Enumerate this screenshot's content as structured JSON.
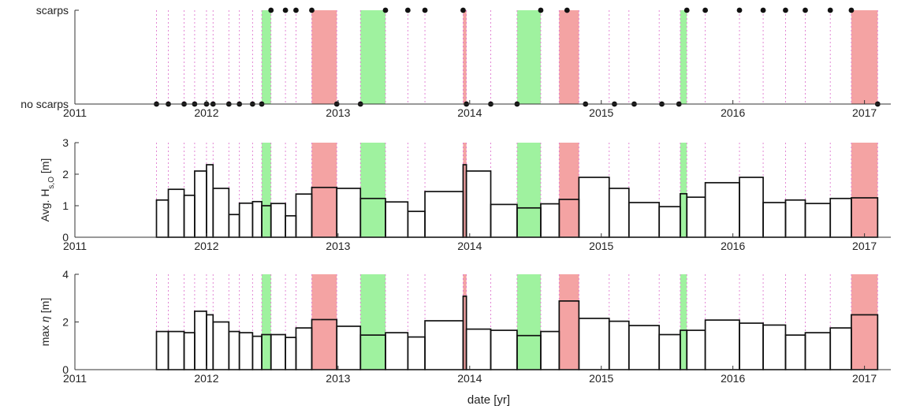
{
  "chart_data": {
    "type": "bar",
    "xlabel": "date [yr]",
    "xlim": [
      2011,
      2017.2
    ],
    "xticks": [
      "2011",
      "2012",
      "2013",
      "2014",
      "2015",
      "2016",
      "2017"
    ],
    "colors": {
      "scarp_shade": "#f4a3a3",
      "no_scarp_shade": "#9ff29f",
      "survey_line": "#e07ad0",
      "box": "#111111",
      "bg": "#ffffff"
    },
    "highlight_periods": [
      {
        "kind": "red",
        "start": 2012.8,
        "end": 2012.99
      },
      {
        "kind": "red",
        "start": 2013.95,
        "end": 2013.975
      },
      {
        "kind": "red",
        "start": 2014.68,
        "end": 2014.83
      },
      {
        "kind": "red",
        "start": 2016.9,
        "end": 2017.1
      },
      {
        "kind": "green",
        "start": 2012.42,
        "end": 2012.49
      },
      {
        "kind": "green",
        "start": 2013.17,
        "end": 2013.36
      },
      {
        "kind": "green",
        "start": 2014.36,
        "end": 2014.54
      },
      {
        "kind": "green",
        "start": 2015.6,
        "end": 2015.65
      }
    ],
    "survey_dates": [
      2011.62,
      2011.71,
      2011.83,
      2011.91,
      2012.0,
      2012.05,
      2012.17,
      2012.25,
      2012.35,
      2012.42,
      2012.49,
      2012.6,
      2012.68,
      2012.8,
      2012.99,
      2013.17,
      2013.36,
      2013.53,
      2013.66,
      2013.95,
      2013.975,
      2014.16,
      2014.36,
      2014.54,
      2014.68,
      2014.83,
      2015.06,
      2015.21,
      2015.44,
      2015.6,
      2015.65,
      2015.79,
      2016.05,
      2016.23,
      2016.4,
      2016.55,
      2016.74,
      2016.9,
      2017.1
    ],
    "panels": [
      {
        "name": "scarps",
        "type": "scatter",
        "ylim": [
          0,
          1
        ],
        "ytick_labels": [
          "no scarps",
          "scarps"
        ],
        "points": [
          {
            "x": 2011.62,
            "y": 0
          },
          {
            "x": 2011.71,
            "y": 0
          },
          {
            "x": 2011.83,
            "y": 0
          },
          {
            "x": 2011.91,
            "y": 0
          },
          {
            "x": 2012.0,
            "y": 0
          },
          {
            "x": 2012.05,
            "y": 0
          },
          {
            "x": 2012.17,
            "y": 0
          },
          {
            "x": 2012.25,
            "y": 0
          },
          {
            "x": 2012.35,
            "y": 0
          },
          {
            "x": 2012.42,
            "y": 0
          },
          {
            "x": 2012.49,
            "y": 1
          },
          {
            "x": 2012.6,
            "y": 1
          },
          {
            "x": 2012.68,
            "y": 1
          },
          {
            "x": 2012.8,
            "y": 1
          },
          {
            "x": 2012.99,
            "y": 0
          },
          {
            "x": 2013.17,
            "y": 0
          },
          {
            "x": 2013.36,
            "y": 1
          },
          {
            "x": 2013.53,
            "y": 1
          },
          {
            "x": 2013.66,
            "y": 1
          },
          {
            "x": 2013.95,
            "y": 1
          },
          {
            "x": 2013.975,
            "y": 0
          },
          {
            "x": 2014.16,
            "y": 0
          },
          {
            "x": 2014.36,
            "y": 0
          },
          {
            "x": 2014.54,
            "y": 1
          },
          {
            "x": 2014.74,
            "y": 1
          },
          {
            "x": 2014.88,
            "y": 0
          },
          {
            "x": 2015.1,
            "y": 0
          },
          {
            "x": 2015.25,
            "y": 0
          },
          {
            "x": 2015.46,
            "y": 0
          },
          {
            "x": 2015.59,
            "y": 0
          },
          {
            "x": 2015.65,
            "y": 1
          },
          {
            "x": 2015.79,
            "y": 1
          },
          {
            "x": 2016.05,
            "y": 1
          },
          {
            "x": 2016.23,
            "y": 1
          },
          {
            "x": 2016.4,
            "y": 1
          },
          {
            "x": 2016.55,
            "y": 1
          },
          {
            "x": 2016.74,
            "y": 1
          },
          {
            "x": 2016.9,
            "y": 1
          },
          {
            "x": 2017.1,
            "y": 0
          }
        ]
      },
      {
        "name": "avg_hs",
        "ylabel": "Avg. H",
        "ylabel_sub": "s,O",
        "ylabel_unit": " [m]",
        "ylim": [
          0,
          3
        ],
        "yticks": [
          0,
          1,
          2,
          3
        ],
        "bars": [
          {
            "start": 2011.62,
            "end": 2011.71,
            "value": 1.18
          },
          {
            "start": 2011.71,
            "end": 2011.83,
            "value": 1.52
          },
          {
            "start": 2011.83,
            "end": 2011.91,
            "value": 1.33
          },
          {
            "start": 2011.91,
            "end": 2012.0,
            "value": 2.1
          },
          {
            "start": 2012.0,
            "end": 2012.05,
            "value": 2.3
          },
          {
            "start": 2012.05,
            "end": 2012.17,
            "value": 1.55
          },
          {
            "start": 2012.17,
            "end": 2012.25,
            "value": 0.72
          },
          {
            "start": 2012.25,
            "end": 2012.35,
            "value": 1.08
          },
          {
            "start": 2012.35,
            "end": 2012.42,
            "value": 1.13
          },
          {
            "start": 2012.42,
            "end": 2012.49,
            "value": 1.0
          },
          {
            "start": 2012.49,
            "end": 2012.6,
            "value": 1.07
          },
          {
            "start": 2012.6,
            "end": 2012.68,
            "value": 0.68
          },
          {
            "start": 2012.68,
            "end": 2012.8,
            "value": 1.37
          },
          {
            "start": 2012.8,
            "end": 2012.99,
            "value": 1.58
          },
          {
            "start": 2012.99,
            "end": 2013.17,
            "value": 1.55
          },
          {
            "start": 2013.17,
            "end": 2013.36,
            "value": 1.23
          },
          {
            "start": 2013.36,
            "end": 2013.53,
            "value": 1.12
          },
          {
            "start": 2013.53,
            "end": 2013.66,
            "value": 0.82
          },
          {
            "start": 2013.66,
            "end": 2013.95,
            "value": 1.45
          },
          {
            "start": 2013.95,
            "end": 2013.975,
            "value": 2.3
          },
          {
            "start": 2013.975,
            "end": 2014.16,
            "value": 2.1
          },
          {
            "start": 2014.16,
            "end": 2014.36,
            "value": 1.04
          },
          {
            "start": 2014.36,
            "end": 2014.54,
            "value": 0.93
          },
          {
            "start": 2014.54,
            "end": 2014.68,
            "value": 1.06
          },
          {
            "start": 2014.68,
            "end": 2014.83,
            "value": 1.2
          },
          {
            "start": 2014.83,
            "end": 2015.06,
            "value": 1.9
          },
          {
            "start": 2015.06,
            "end": 2015.21,
            "value": 1.55
          },
          {
            "start": 2015.21,
            "end": 2015.44,
            "value": 1.1
          },
          {
            "start": 2015.44,
            "end": 2015.6,
            "value": 0.97
          },
          {
            "start": 2015.6,
            "end": 2015.65,
            "value": 1.38
          },
          {
            "start": 2015.65,
            "end": 2015.79,
            "value": 1.27
          },
          {
            "start": 2015.79,
            "end": 2016.05,
            "value": 1.73
          },
          {
            "start": 2016.05,
            "end": 2016.23,
            "value": 1.9
          },
          {
            "start": 2016.23,
            "end": 2016.4,
            "value": 1.1
          },
          {
            "start": 2016.4,
            "end": 2016.55,
            "value": 1.18
          },
          {
            "start": 2016.55,
            "end": 2016.74,
            "value": 1.07
          },
          {
            "start": 2016.74,
            "end": 2016.9,
            "value": 1.23
          },
          {
            "start": 2016.9,
            "end": 2017.1,
            "value": 1.25
          }
        ]
      },
      {
        "name": "max_eta",
        "ylabel": "max ",
        "ylabel_greek": "η",
        "ylabel_unit": " [m]",
        "ylim": [
          0,
          4
        ],
        "yticks": [
          0,
          2,
          4
        ],
        "bars": [
          {
            "start": 2011.62,
            "end": 2011.71,
            "value": 1.6
          },
          {
            "start": 2011.71,
            "end": 2011.83,
            "value": 1.6
          },
          {
            "start": 2011.83,
            "end": 2011.91,
            "value": 1.55
          },
          {
            "start": 2011.91,
            "end": 2012.0,
            "value": 2.45
          },
          {
            "start": 2012.0,
            "end": 2012.05,
            "value": 2.3
          },
          {
            "start": 2012.05,
            "end": 2012.17,
            "value": 2.0
          },
          {
            "start": 2012.17,
            "end": 2012.25,
            "value": 1.6
          },
          {
            "start": 2012.25,
            "end": 2012.35,
            "value": 1.55
          },
          {
            "start": 2012.35,
            "end": 2012.42,
            "value": 1.4
          },
          {
            "start": 2012.42,
            "end": 2012.49,
            "value": 1.47
          },
          {
            "start": 2012.49,
            "end": 2012.6,
            "value": 1.47
          },
          {
            "start": 2012.6,
            "end": 2012.68,
            "value": 1.35
          },
          {
            "start": 2012.68,
            "end": 2012.8,
            "value": 1.75
          },
          {
            "start": 2012.8,
            "end": 2012.99,
            "value": 2.1
          },
          {
            "start": 2012.99,
            "end": 2013.17,
            "value": 1.82
          },
          {
            "start": 2013.17,
            "end": 2013.36,
            "value": 1.45
          },
          {
            "start": 2013.36,
            "end": 2013.53,
            "value": 1.55
          },
          {
            "start": 2013.53,
            "end": 2013.66,
            "value": 1.37
          },
          {
            "start": 2013.66,
            "end": 2013.95,
            "value": 2.05
          },
          {
            "start": 2013.95,
            "end": 2013.975,
            "value": 3.08
          },
          {
            "start": 2013.975,
            "end": 2014.16,
            "value": 1.7
          },
          {
            "start": 2014.16,
            "end": 2014.36,
            "value": 1.65
          },
          {
            "start": 2014.36,
            "end": 2014.54,
            "value": 1.43
          },
          {
            "start": 2014.54,
            "end": 2014.68,
            "value": 1.6
          },
          {
            "start": 2014.68,
            "end": 2014.83,
            "value": 2.88
          },
          {
            "start": 2014.83,
            "end": 2015.06,
            "value": 2.15
          },
          {
            "start": 2015.06,
            "end": 2015.21,
            "value": 2.03
          },
          {
            "start": 2015.21,
            "end": 2015.44,
            "value": 1.85
          },
          {
            "start": 2015.44,
            "end": 2015.6,
            "value": 1.47
          },
          {
            "start": 2015.6,
            "end": 2015.65,
            "value": 1.65
          },
          {
            "start": 2015.65,
            "end": 2015.79,
            "value": 1.65
          },
          {
            "start": 2015.79,
            "end": 2016.05,
            "value": 2.08
          },
          {
            "start": 2016.05,
            "end": 2016.23,
            "value": 1.95
          },
          {
            "start": 2016.23,
            "end": 2016.4,
            "value": 1.87
          },
          {
            "start": 2016.4,
            "end": 2016.55,
            "value": 1.45
          },
          {
            "start": 2016.55,
            "end": 2016.74,
            "value": 1.55
          },
          {
            "start": 2016.74,
            "end": 2016.9,
            "value": 1.75
          },
          {
            "start": 2016.9,
            "end": 2017.1,
            "value": 2.3
          }
        ]
      }
    ]
  }
}
